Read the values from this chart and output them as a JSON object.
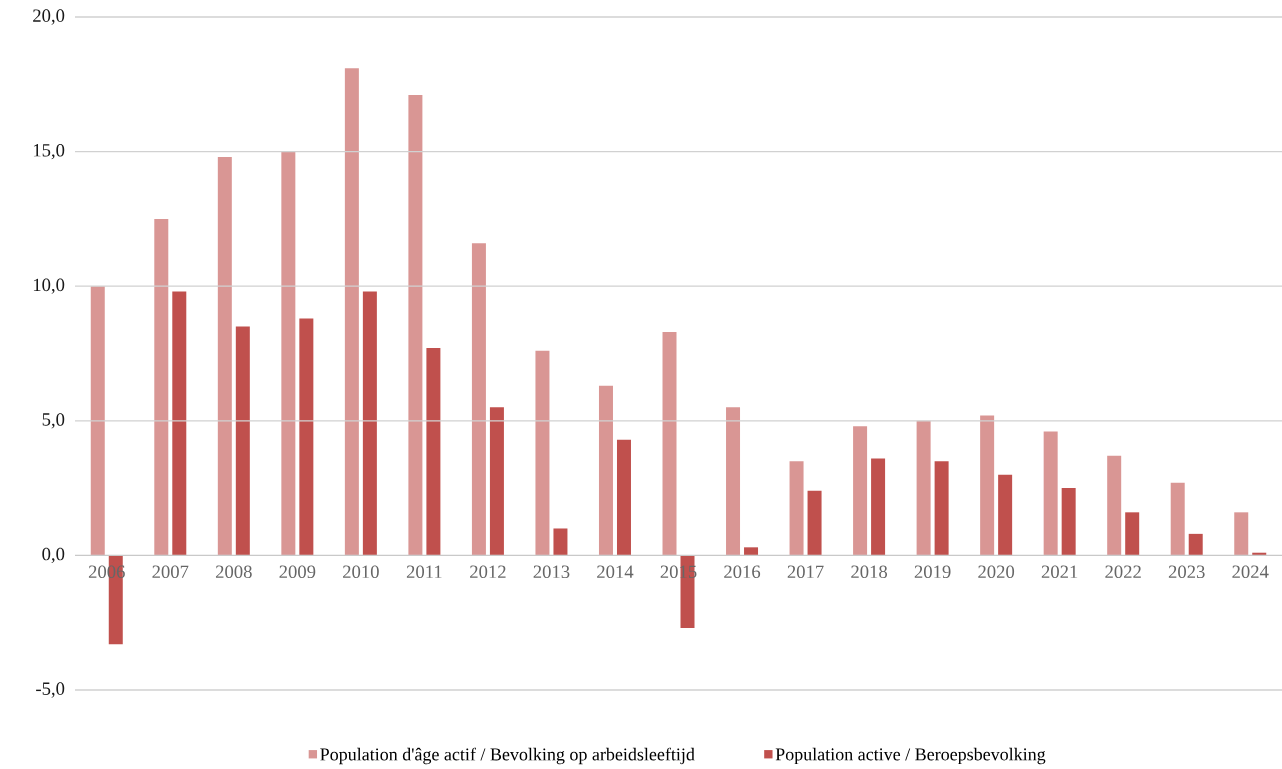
{
  "chart_data": {
    "type": "bar",
    "categories": [
      "2006",
      "2007",
      "2008",
      "2009",
      "2010",
      "2011",
      "2012",
      "2013",
      "2014",
      "2015",
      "2016",
      "2017",
      "2018",
      "2019",
      "2020",
      "2021",
      "2022",
      "2023",
      "2024"
    ],
    "series": [
      {
        "name": "Population d'âge actif / Bevolking op arbeidsleeftijd",
        "color": "#d99694",
        "values": [
          10.0,
          12.5,
          14.8,
          15.0,
          18.1,
          17.1,
          11.6,
          7.6,
          6.3,
          8.3,
          5.5,
          3.5,
          4.8,
          5.0,
          5.2,
          4.6,
          3.7,
          2.7,
          1.6
        ]
      },
      {
        "name": "Population active / Beroepsbevolking",
        "color": "#c0504d",
        "values": [
          -3.3,
          9.8,
          8.5,
          8.8,
          9.8,
          7.7,
          5.5,
          1.0,
          4.3,
          -2.7,
          0.3,
          2.4,
          3.6,
          3.5,
          3.0,
          2.5,
          1.6,
          0.8,
          0.1
        ]
      }
    ],
    "ylim": [
      -5,
      20
    ],
    "yticks": [
      {
        "value": -5,
        "label": "-5,0"
      },
      {
        "value": 0,
        "label": "0,0"
      },
      {
        "value": 5,
        "label": "5,0"
      },
      {
        "value": 10,
        "label": "10,0"
      },
      {
        "value": 15,
        "label": "15,0"
      },
      {
        "value": 20,
        "label": "20,0"
      }
    ],
    "grid": "y",
    "legend": "bottom"
  }
}
